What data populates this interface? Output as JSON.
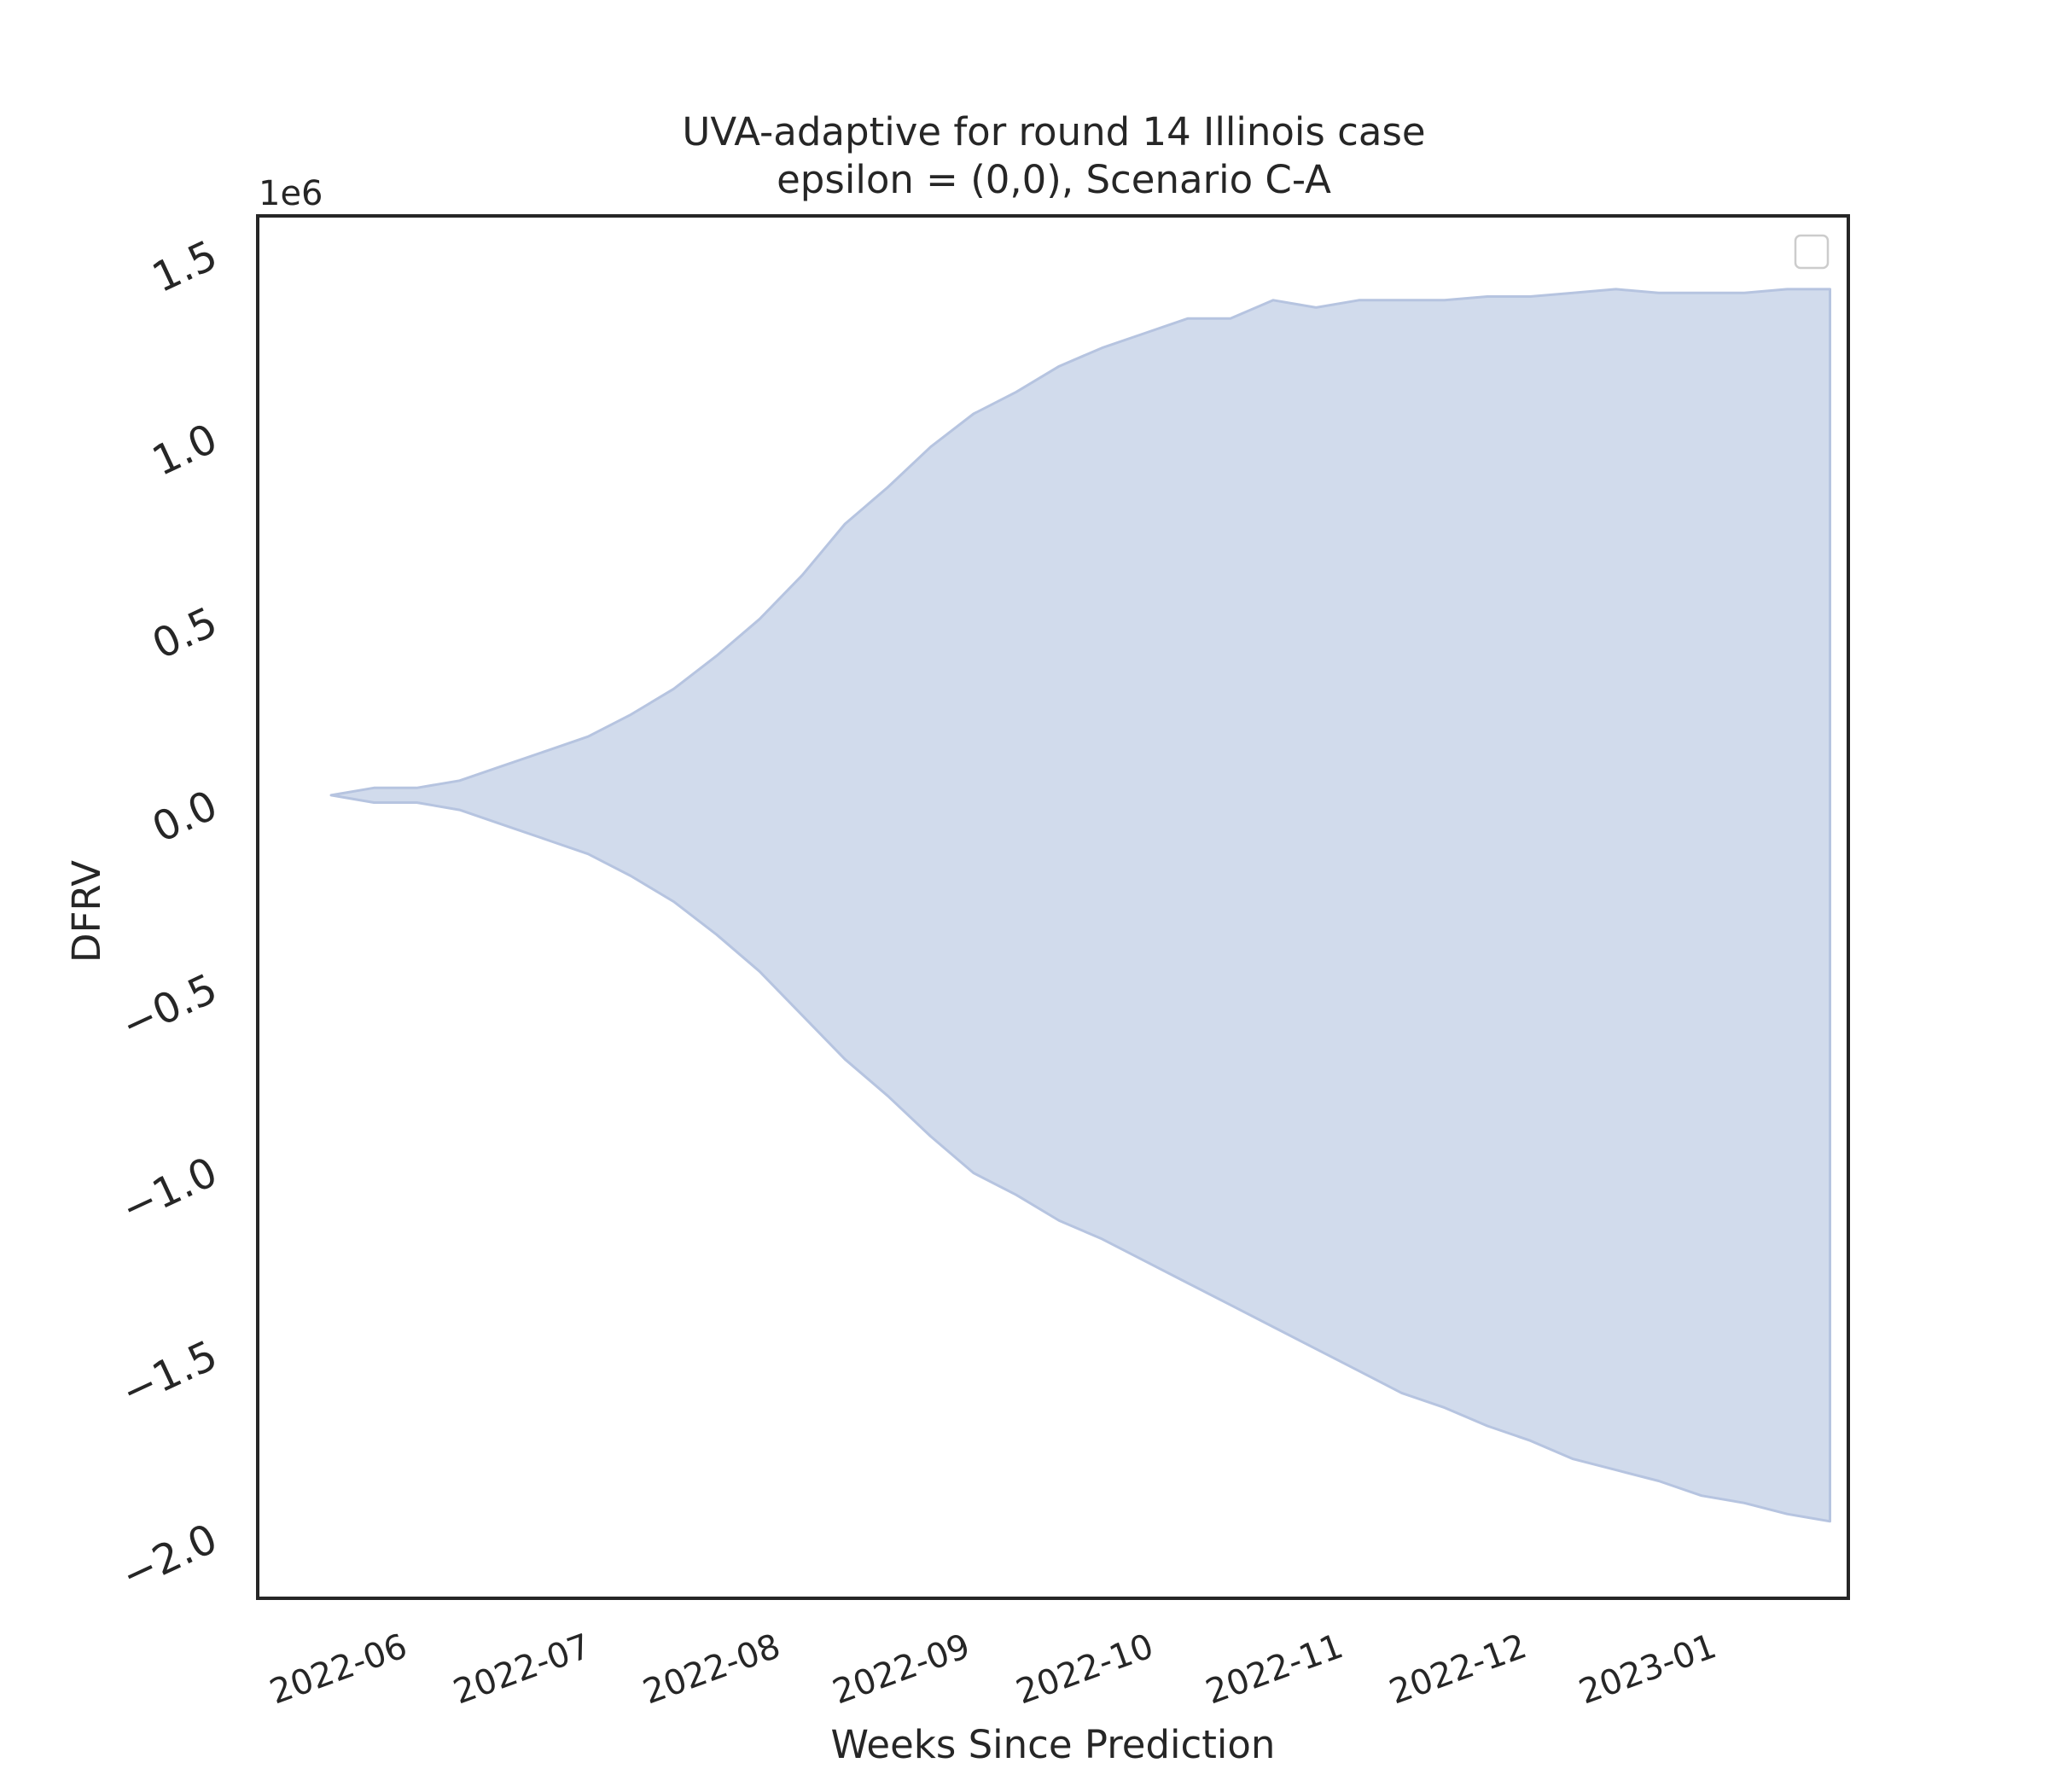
{
  "chart_data": {
    "type": "area",
    "title_line1": "UVA-adaptive for round 14 Illinois case",
    "title_line2": "epsilon = (0,0), Scenario C-A",
    "xlabel": "Weeks Since Prediction",
    "ylabel": "DFRV",
    "y_offset_label": "1e6",
    "y_scale_factor": 1000000,
    "y_ticks": [
      1.5,
      1.0,
      0.5,
      0.0,
      -0.5,
      -1.0,
      -1.5,
      -2.0
    ],
    "y_tick_labels": [
      "1.5",
      "1.0",
      "0.5",
      "0.0",
      "−0.5",
      "−1.0",
      "−1.5",
      "−2.0"
    ],
    "ylim": [
      -2.17,
      1.6
    ],
    "xlim": [
      "2022-05-10",
      "2023-01-25"
    ],
    "x_tick_dates": [
      "2022-06-01",
      "2022-07-01",
      "2022-08-01",
      "2022-09-01",
      "2022-10-01",
      "2022-11-01",
      "2022-12-01",
      "2023-01-01"
    ],
    "x_tick_labels": [
      "2022-06",
      "2022-07",
      "2022-08",
      "2022-09",
      "2022-10",
      "2022-11",
      "2022-12",
      "2023-01"
    ],
    "fill_color": "#d1dbec",
    "edge_color": "#b6c4e0",
    "band": [
      {
        "x": "2022-05-22",
        "upper": 0.02,
        "lower": 0.02
      },
      {
        "x": "2022-05-29",
        "upper": 0.04,
        "lower": 0.0
      },
      {
        "x": "2022-06-05",
        "upper": 0.04,
        "lower": 0.0
      },
      {
        "x": "2022-06-12",
        "upper": 0.06,
        "lower": -0.02
      },
      {
        "x": "2022-06-19",
        "upper": 0.1,
        "lower": -0.06
      },
      {
        "x": "2022-06-26",
        "upper": 0.14,
        "lower": -0.1
      },
      {
        "x": "2022-07-03",
        "upper": 0.18,
        "lower": -0.14
      },
      {
        "x": "2022-07-10",
        "upper": 0.24,
        "lower": -0.2
      },
      {
        "x": "2022-07-17",
        "upper": 0.31,
        "lower": -0.27
      },
      {
        "x": "2022-07-24",
        "upper": 0.4,
        "lower": -0.36
      },
      {
        "x": "2022-07-31",
        "upper": 0.5,
        "lower": -0.46
      },
      {
        "x": "2022-08-07",
        "upper": 0.62,
        "lower": -0.58
      },
      {
        "x": "2022-08-14",
        "upper": 0.76,
        "lower": -0.7
      },
      {
        "x": "2022-08-21",
        "upper": 0.86,
        "lower": -0.8
      },
      {
        "x": "2022-08-28",
        "upper": 0.97,
        "lower": -0.91
      },
      {
        "x": "2022-09-04",
        "upper": 1.06,
        "lower": -1.01
      },
      {
        "x": "2022-09-11",
        "upper": 1.12,
        "lower": -1.07
      },
      {
        "x": "2022-09-18",
        "upper": 1.19,
        "lower": -1.14
      },
      {
        "x": "2022-09-25",
        "upper": 1.24,
        "lower": -1.19
      },
      {
        "x": "2022-10-02",
        "upper": 1.28,
        "lower": -1.25
      },
      {
        "x": "2022-10-09",
        "upper": 1.32,
        "lower": -1.31
      },
      {
        "x": "2022-10-16",
        "upper": 1.32,
        "lower": -1.37
      },
      {
        "x": "2022-10-23",
        "upper": 1.37,
        "lower": -1.43
      },
      {
        "x": "2022-10-30",
        "upper": 1.35,
        "lower": -1.49
      },
      {
        "x": "2022-11-06",
        "upper": 1.37,
        "lower": -1.55
      },
      {
        "x": "2022-11-13",
        "upper": 1.37,
        "lower": -1.61
      },
      {
        "x": "2022-11-20",
        "upper": 1.37,
        "lower": -1.65
      },
      {
        "x": "2022-11-27",
        "upper": 1.38,
        "lower": -1.7
      },
      {
        "x": "2022-12-04",
        "upper": 1.38,
        "lower": -1.74
      },
      {
        "x": "2022-12-11",
        "upper": 1.39,
        "lower": -1.79
      },
      {
        "x": "2022-12-18",
        "upper": 1.4,
        "lower": -1.82
      },
      {
        "x": "2022-12-25",
        "upper": 1.39,
        "lower": -1.85
      },
      {
        "x": "2023-01-01",
        "upper": 1.39,
        "lower": -1.89
      },
      {
        "x": "2023-01-08",
        "upper": 1.39,
        "lower": -1.91
      },
      {
        "x": "2023-01-15",
        "upper": 1.4,
        "lower": -1.94
      },
      {
        "x": "2023-01-22",
        "upper": 1.4,
        "lower": -1.96
      }
    ]
  }
}
